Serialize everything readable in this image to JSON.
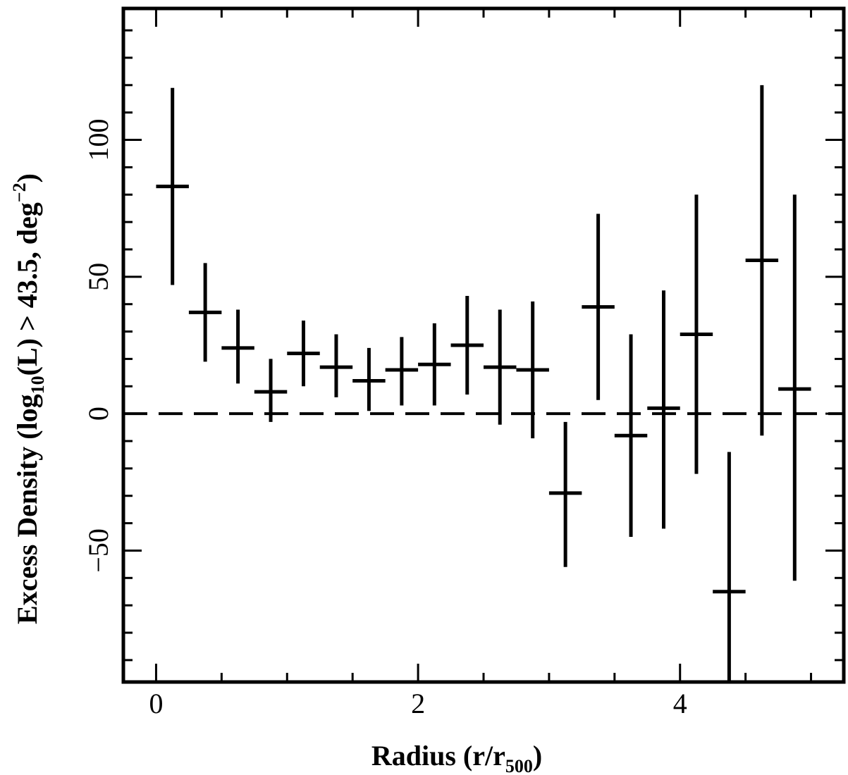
{
  "chart_data": {
    "type": "scatter",
    "xlabel": {
      "prefix": "Radius (r/r",
      "subscript": "500",
      "suffix": ")"
    },
    "ylabel": {
      "p1": "Excess Density (log",
      "sub": "10",
      "p2": "(L) > 43.5, deg",
      "sup": "−2",
      "p3": ")"
    },
    "xlim": [
      -0.25,
      5.25
    ],
    "ylim": [
      -98,
      148
    ],
    "x_ticks": [
      {
        "value": 0,
        "label": "0"
      },
      {
        "value": 2,
        "label": "2"
      },
      {
        "value": 4,
        "label": "4"
      }
    ],
    "y_ticks": [
      {
        "value": -50,
        "label": "−50"
      },
      {
        "value": 0,
        "label": "0"
      },
      {
        "value": 50,
        "label": "50"
      },
      {
        "value": 100,
        "label": "100"
      }
    ],
    "reference_line": {
      "y": 0,
      "style": "dashed"
    },
    "series": [
      {
        "points": [
          {
            "x": 0.125,
            "y": 83,
            "xerr": 0.125,
            "ylo": 47,
            "yhi": 119
          },
          {
            "x": 0.375,
            "y": 37,
            "xerr": 0.125,
            "ylo": 19,
            "yhi": 55
          },
          {
            "x": 0.625,
            "y": 24,
            "xerr": 0.125,
            "ylo": 11,
            "yhi": 38
          },
          {
            "x": 0.875,
            "y": 8,
            "xerr": 0.125,
            "ylo": -3,
            "yhi": 20
          },
          {
            "x": 1.125,
            "y": 22,
            "xerr": 0.125,
            "ylo": 10,
            "yhi": 34
          },
          {
            "x": 1.375,
            "y": 17,
            "xerr": 0.125,
            "ylo": 6,
            "yhi": 29
          },
          {
            "x": 1.625,
            "y": 12,
            "xerr": 0.125,
            "ylo": 1,
            "yhi": 24
          },
          {
            "x": 1.875,
            "y": 16,
            "xerr": 0.125,
            "ylo": 3,
            "yhi": 28
          },
          {
            "x": 2.125,
            "y": 18,
            "xerr": 0.125,
            "ylo": 3,
            "yhi": 33
          },
          {
            "x": 2.375,
            "y": 25,
            "xerr": 0.125,
            "ylo": 7,
            "yhi": 43
          },
          {
            "x": 2.625,
            "y": 17,
            "xerr": 0.125,
            "ylo": -4,
            "yhi": 38
          },
          {
            "x": 2.875,
            "y": 16,
            "xerr": 0.125,
            "ylo": -9,
            "yhi": 41
          },
          {
            "x": 3.125,
            "y": -29,
            "xerr": 0.125,
            "ylo": -56,
            "yhi": -3
          },
          {
            "x": 3.375,
            "y": 39,
            "xerr": 0.125,
            "ylo": 5,
            "yhi": 73
          },
          {
            "x": 3.625,
            "y": -8,
            "xerr": 0.125,
            "ylo": -45,
            "yhi": 29
          },
          {
            "x": 3.875,
            "y": 2,
            "xerr": 0.125,
            "ylo": -42,
            "yhi": 45
          },
          {
            "x": 4.125,
            "y": 29,
            "xerr": 0.125,
            "ylo": -22,
            "yhi": 80
          },
          {
            "x": 4.375,
            "y": -65,
            "xerr": 0.125,
            "ylo": -98,
            "yhi": -14
          },
          {
            "x": 4.625,
            "y": 56,
            "xerr": 0.125,
            "ylo": -8,
            "yhi": 120
          },
          {
            "x": 4.875,
            "y": 9,
            "xerr": 0.125,
            "ylo": -61,
            "yhi": 80
          }
        ]
      }
    ]
  }
}
